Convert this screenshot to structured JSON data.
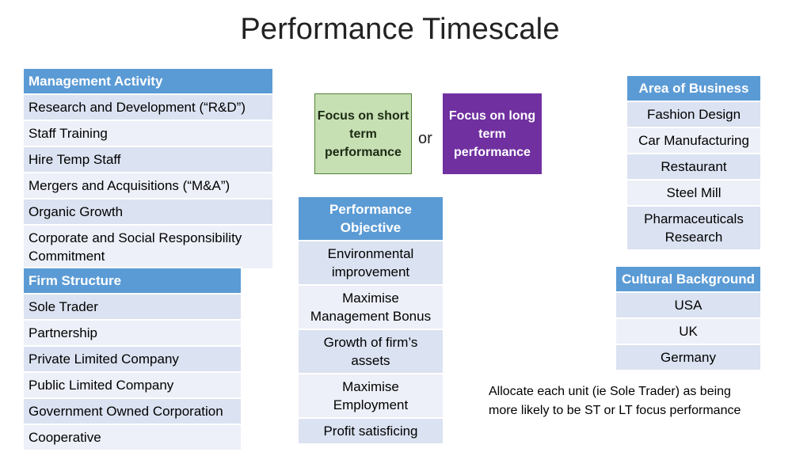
{
  "title": "Performance Timescale",
  "management": {
    "header": "Management Activity",
    "items": [
      "Research and Development (“R&D”)",
      "Staff Training",
      "Hire Temp Staff",
      "Mergers and Acquisitions (“M&A”)",
      "Organic Growth",
      "Corporate and Social Responsibility Commitment"
    ]
  },
  "firm": {
    "header": "Firm Structure",
    "items": [
      "Sole Trader",
      "Partnership",
      "Private Limited Company",
      "Public Limited Company",
      "Government Owned Corporation",
      "Cooperative"
    ]
  },
  "objective": {
    "header": "Performance Objective",
    "items": [
      "Environmental improvement",
      "Maximise Management Bonus",
      "Growth of firm’s assets",
      "Maximise Employment",
      "Profit satisficing"
    ]
  },
  "business": {
    "header": "Area of Business",
    "items": [
      "Fashion Design",
      "Car Manufacturing",
      "Restaurant",
      "Steel Mill",
      "Pharmaceuticals Research"
    ]
  },
  "culture": {
    "header": "Cultural Background",
    "items": [
      "USA",
      "UK",
      "Germany"
    ]
  },
  "focus": {
    "short": "Focus on short term performance",
    "or": "or",
    "long": "Focus on long term performance"
  },
  "note": "Allocate each unit (ie Sole Trader) as being more likely to be ST or LT focus performance",
  "colors": {
    "header_blue": "#5b9bd5",
    "row_dark": "#dbe2f1",
    "row_light": "#edf0f8",
    "short_box_fill": "#c6e0b4",
    "short_box_border": "#548235",
    "long_box_fill": "#7030a0"
  }
}
